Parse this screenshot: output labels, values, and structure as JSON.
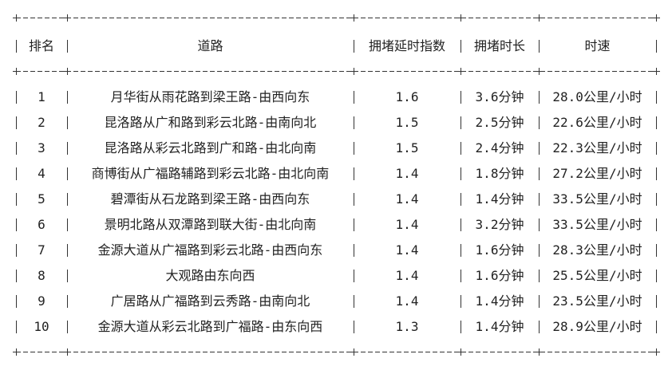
{
  "headers": [
    "排名",
    "道路",
    "拥堵延时指数",
    "拥堵时长",
    "时速"
  ],
  "rows": [
    [
      "1",
      "月华街从雨花路到梁王路-由西向东",
      "1.6",
      "3.6分钟",
      "28.0公里/小时"
    ],
    [
      "2",
      "昆洛路从广和路到彩云北路-由南向北",
      "1.5",
      "2.5分钟",
      "22.6公里/小时"
    ],
    [
      "3",
      "昆洛路从彩云北路到广和路-由北向南",
      "1.5",
      "2.4分钟",
      "22.3公里/小时"
    ],
    [
      "4",
      "商博街从广福路辅路到彩云北路-由北向南",
      "1.4",
      "1.8分钟",
      "27.2公里/小时"
    ],
    [
      "5",
      "碧潭街从石龙路到梁王路-由西向东",
      "1.4",
      "1.4分钟",
      "33.5公里/小时"
    ],
    [
      "6",
      "景明北路从双潭路到联大街-由北向南",
      "1.4",
      "3.2分钟",
      "33.5公里/小时"
    ],
    [
      "7",
      "金源大道从广福路到彩云北路-由西向东",
      "1.4",
      "1.6分钟",
      "28.3公里/小时"
    ],
    [
      "8",
      "大观路由东向西",
      "1.4",
      "1.6分钟",
      "25.5公里/小时"
    ],
    [
      "9",
      "广居路从广福路到云秀路-由南向北",
      "1.4",
      "1.4分钟",
      "23.5公里/小时"
    ],
    [
      "10",
      "金源大道从彩云北路到广福路-由东向西",
      "1.3",
      "1.4分钟",
      "28.9公里/小时"
    ]
  ]
}
